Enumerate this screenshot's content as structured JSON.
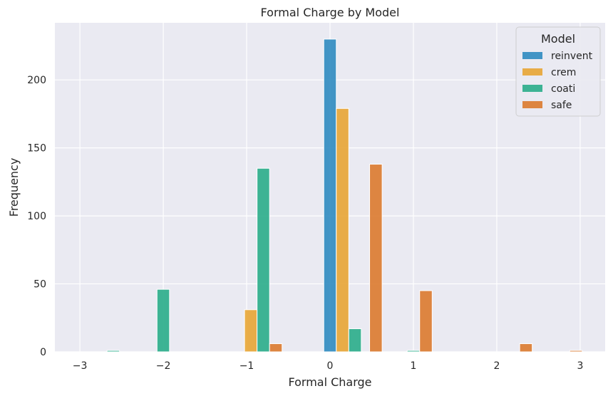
{
  "chart_data": {
    "type": "bar",
    "title": "Formal Charge by Model",
    "xlabel": "Formal Charge",
    "ylabel": "Frequency",
    "xlim": [
      -3.3,
      3.3
    ],
    "ylim": [
      0,
      242
    ],
    "xticks": [
      -3,
      -2,
      -1,
      0,
      1,
      2,
      3
    ],
    "xtick_labels": [
      "−3",
      "−2",
      "−1",
      "0",
      "1",
      "2",
      "3"
    ],
    "yticks": [
      0,
      50,
      100,
      150,
      200
    ],
    "grid": true,
    "legend": {
      "title": "Model",
      "position": "top-right"
    },
    "bar_width": 0.15,
    "series": [
      {
        "name": "reinvent",
        "color": "#2f8bc0",
        "bars": [
          {
            "x": -3.0,
            "value": 0
          },
          {
            "x": -2.0,
            "value": 0
          },
          {
            "x": -1.0,
            "value": 0
          },
          {
            "x": 0.0,
            "value": 230
          },
          {
            "x": 1.0,
            "value": 0
          },
          {
            "x": 2.0,
            "value": 0
          },
          {
            "x": 3.0,
            "value": 0
          }
        ]
      },
      {
        "name": "crem",
        "color": "#e8a534",
        "bars": [
          {
            "x": -2.85,
            "value": 0
          },
          {
            "x": -1.85,
            "value": 0
          },
          {
            "x": -0.95,
            "value": 31
          },
          {
            "x": 0.15,
            "value": 179
          },
          {
            "x": 1.15,
            "value": 0
          },
          {
            "x": 2.15,
            "value": 0
          },
          {
            "x": 3.15,
            "value": 0
          }
        ]
      },
      {
        "name": "coati",
        "color": "#2aad8a",
        "bars": [
          {
            "x": -2.6,
            "value": 1
          },
          {
            "x": -2.0,
            "value": 46
          },
          {
            "x": -0.8,
            "value": 135
          },
          {
            "x": 0.3,
            "value": 17
          },
          {
            "x": 1.0,
            "value": 1
          },
          {
            "x": 2.3,
            "value": 0
          },
          {
            "x": 3.0,
            "value": 0
          }
        ]
      },
      {
        "name": "safe",
        "color": "#dc7a2e",
        "bars": [
          {
            "x": -0.65,
            "value": 6
          },
          {
            "x": 0.55,
            "value": 138
          },
          {
            "x": 1.15,
            "value": 45
          },
          {
            "x": 2.35,
            "value": 6
          },
          {
            "x": 2.95,
            "value": 1
          }
        ]
      }
    ]
  }
}
